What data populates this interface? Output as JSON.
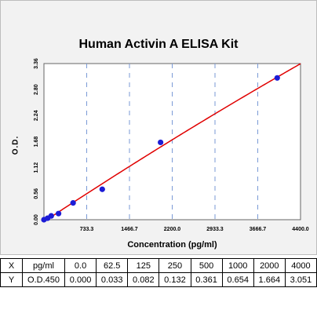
{
  "chart_data": {
    "type": "scatter",
    "title": "Human Activin A ELISA Kit",
    "xlabel": "Concentration (pg/ml)",
    "ylabel": "O.D.",
    "xlim": [
      0,
      4400
    ],
    "ylim": [
      0,
      3.36
    ],
    "xticks": [
      "733.3",
      "1466.7",
      "2200.0",
      "2933.3",
      "3666.7",
      "4400.0"
    ],
    "xtick_values": [
      733.3,
      1466.7,
      2200.0,
      2933.3,
      3666.7,
      4400.0
    ],
    "yticks": [
      "0.00",
      "0.56",
      "1.12",
      "1.68",
      "2.24",
      "2.80",
      "3.36"
    ],
    "ytick_values": [
      0.0,
      0.56,
      1.12,
      1.68,
      2.24,
      2.8,
      3.36
    ],
    "grid": "vertical dashed",
    "points_color": "#1c1cd6",
    "curve_color": "#e00000",
    "x": [
      0.0,
      62.5,
      125,
      250,
      500,
      1000,
      2000,
      4000
    ],
    "y": [
      0.0,
      0.033,
      0.082,
      0.132,
      0.361,
      0.654,
      1.664,
      3.051
    ]
  },
  "table": {
    "row_x": {
      "head": "X",
      "unit": "pg/ml",
      "values": [
        "0.0",
        "62.5",
        "125",
        "250",
        "500",
        "1000",
        "2000",
        "4000"
      ]
    },
    "row_y": {
      "head": "Y",
      "unit": "O.D.450",
      "values": [
        "0.000",
        "0.033",
        "0.082",
        "0.132",
        "0.361",
        "0.654",
        "1.664",
        "3.051"
      ]
    }
  }
}
